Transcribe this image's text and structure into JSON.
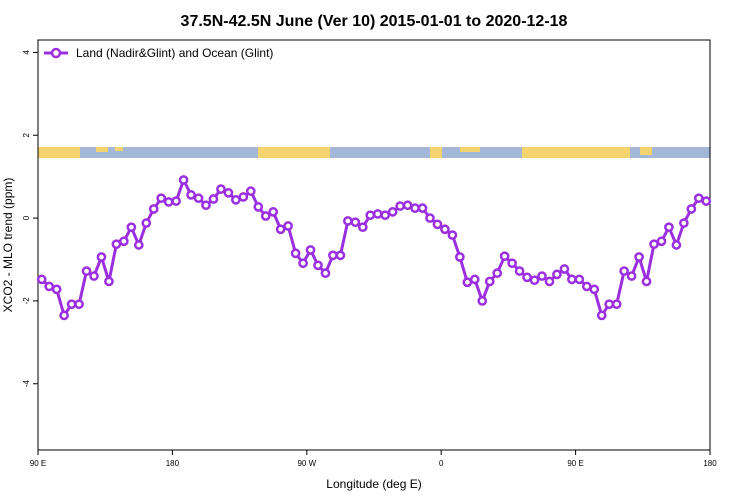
{
  "chart_data": {
    "type": "line",
    "title": "37.5N-42.5N June (Ver 10)   2015-01-01 to 2020-12-18",
    "xlabel": "Longitude (deg E)",
    "ylabel": "XCO2 - MLO trend (ppm)",
    "xlim": [
      90,
      540
    ],
    "ylim": [
      -5.6,
      4.3
    ],
    "xticks": [
      {
        "value": 90,
        "label": "90 E"
      },
      {
        "value": 180,
        "label": "180"
      },
      {
        "value": 270,
        "label": "90 W"
      },
      {
        "value": 360,
        "label": "0"
      },
      {
        "value": 450,
        "label": "90 E"
      },
      {
        "value": 540,
        "label": "180"
      }
    ],
    "yticks": [
      -4,
      -2,
      0,
      2,
      4
    ],
    "legend": "top-left",
    "x": [
      92.5,
      97.5,
      102.5,
      107.5,
      112.5,
      117.5,
      122.5,
      127.5,
      132.5,
      137.5,
      142.5,
      147.5,
      152.5,
      157.5,
      162.5,
      167.5,
      172.5,
      177.5,
      182.5,
      187.5,
      192.5,
      197.5,
      202.5,
      207.5,
      212.5,
      217.5,
      222.5,
      227.5,
      232.5,
      237.5,
      242.5,
      247.5,
      252.5,
      257.5,
      262.5,
      267.5,
      272.5,
      277.5,
      282.5,
      287.5,
      292.5,
      297.5,
      302.5,
      307.5,
      312.5,
      317.5,
      322.5,
      327.5,
      332.5,
      337.5,
      342.5,
      347.5,
      352.5,
      357.5,
      362.5,
      367.5,
      372.5,
      377.5,
      382.5,
      387.5,
      392.5,
      397.5,
      402.5,
      407.5,
      412.5,
      417.5,
      422.5,
      427.5,
      432.5,
      437.5,
      442.5,
      447.5,
      452.5,
      457.5,
      462.5,
      467.5,
      472.5,
      477.5,
      482.5,
      487.5,
      492.5,
      497.5,
      502.5,
      507.5,
      512.5,
      517.5,
      522.5,
      527.5,
      532.5,
      537.5
    ],
    "series": [
      {
        "name": "Land (Nadir&Glint) and Ocean (Glint)",
        "color": "#9b2fe0",
        "values": [
          -1.48,
          -1.65,
          -1.72,
          -2.35,
          -2.08,
          -2.08,
          -1.28,
          -1.4,
          -0.94,
          -1.53,
          -0.63,
          -0.56,
          -0.22,
          -0.65,
          -0.12,
          0.22,
          0.48,
          0.39,
          0.41,
          0.92,
          0.56,
          0.48,
          0.31,
          0.46,
          0.7,
          0.61,
          0.44,
          0.51,
          0.65,
          0.27,
          0.05,
          0.15,
          -0.27,
          -0.19,
          -0.85,
          -1.09,
          -0.77,
          -1.14,
          -1.33,
          -0.9,
          -0.9,
          -0.07,
          -0.1,
          -0.22,
          0.07,
          0.1,
          0.07,
          0.15,
          0.29,
          0.31,
          0.24,
          0.24,
          0,
          -0.15,
          -0.27,
          -0.41,
          -0.94,
          -1.55,
          -1.48,
          -2.0,
          -1.53,
          -1.33,
          -0.92,
          -1.09,
          -1.28,
          -1.43,
          -1.5,
          -1.4,
          -1.53,
          -1.36,
          -1.23,
          -1.48,
          -1.48,
          -1.65,
          -1.72,
          -2.35,
          -2.08,
          -2.08,
          -1.28,
          -1.4,
          -0.94,
          -1.53,
          -0.63,
          -0.56,
          -0.22,
          -0.65,
          -0.12,
          0.22,
          0.48,
          0.41
        ]
      }
    ]
  }
}
